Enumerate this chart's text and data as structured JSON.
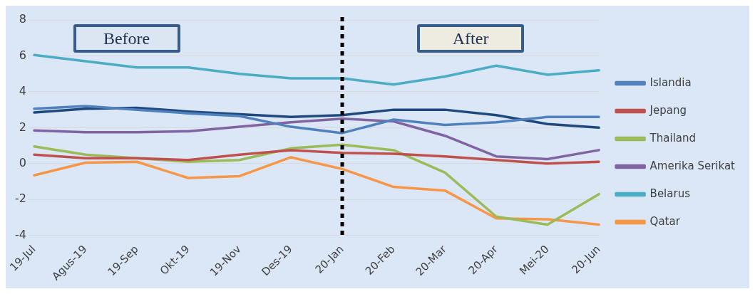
{
  "chart_data": {
    "type": "line",
    "categories": [
      "19-Jul",
      "Agus-19",
      "19-Sep",
      "Okt-19",
      "19-Nov",
      "Des-19",
      "20-Jan",
      "20-Feb",
      "20-Mar",
      "20-Apr",
      "Mei-20",
      "20-Jun"
    ],
    "series": [
      {
        "name": "Islandia",
        "color": "#4f81bd",
        "values": [
          3.05,
          3.2,
          3.0,
          2.8,
          2.65,
          2.05,
          1.7,
          2.45,
          2.15,
          2.3,
          2.6,
          2.6
        ]
      },
      {
        "name": "Jepang",
        "color": "#c0504d",
        "values": [
          0.5,
          0.3,
          0.3,
          0.2,
          0.5,
          0.75,
          0.6,
          0.55,
          0.4,
          0.2,
          0.0,
          0.1
        ]
      },
      {
        "name": "Thailand",
        "color": "#9bbb59",
        "values": [
          0.95,
          0.5,
          0.3,
          0.1,
          0.2,
          0.85,
          1.05,
          0.75,
          -0.5,
          -2.95,
          -3.4,
          -1.7
        ]
      },
      {
        "name": "Amerika Serikat",
        "color": "#8064a2",
        "values": [
          1.85,
          1.75,
          1.75,
          1.8,
          2.05,
          2.3,
          2.5,
          2.35,
          1.55,
          0.4,
          0.25,
          0.75
        ]
      },
      {
        "name": "Belarus",
        "color": "#4bacc6",
        "values": [
          6.05,
          5.7,
          5.35,
          5.35,
          5.0,
          4.75,
          4.75,
          4.4,
          4.85,
          5.45,
          4.95,
          5.2
        ]
      },
      {
        "name": "Qatar",
        "color": "#f79646",
        "values": [
          -0.65,
          0.05,
          0.1,
          -0.8,
          -0.7,
          0.35,
          -0.3,
          -1.3,
          -1.5,
          -3.05,
          -3.1,
          -3.4
        ]
      },
      {
        "color": "#1f497d",
        "values": [
          2.85,
          3.05,
          3.1,
          2.9,
          2.75,
          2.6,
          2.7,
          3.0,
          3.0,
          2.7,
          2.2,
          2.0
        ]
      }
    ],
    "ylim": [
      -4,
      8
    ],
    "yticks": [
      -4,
      -2,
      0,
      2,
      4,
      6,
      8
    ],
    "grid": "y",
    "legend": "right",
    "line_style": "solid",
    "marker": "none",
    "ref_lines": [
      {
        "axis": "x",
        "value": "20-Jan",
        "color": "#000000",
        "line_style": "dotted"
      }
    ],
    "annotations": [
      "Before",
      "After"
    ]
  }
}
